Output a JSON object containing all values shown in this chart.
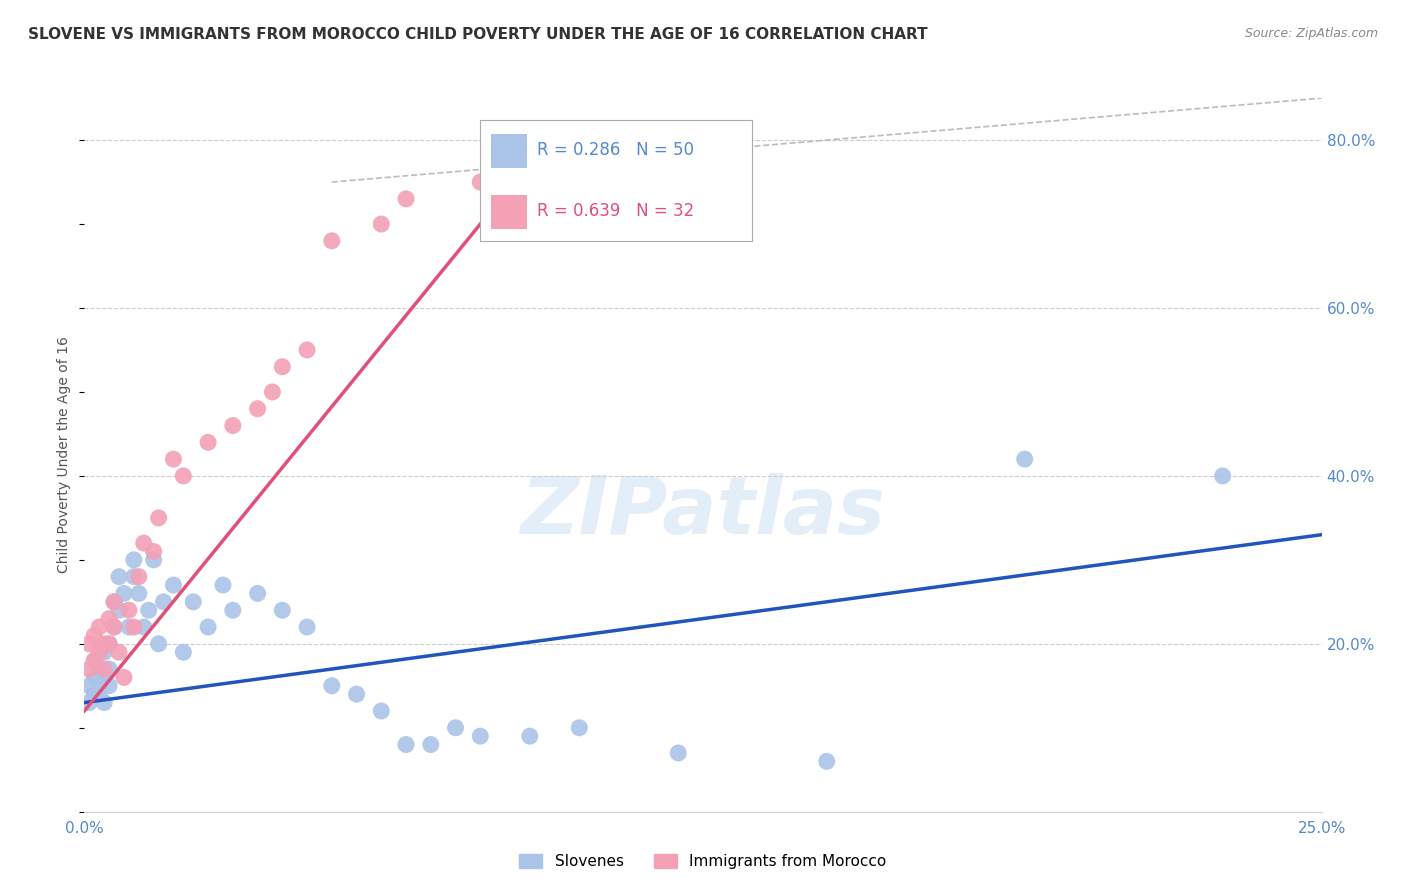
{
  "title": "SLOVENE VS IMMIGRANTS FROM MOROCCO CHILD POVERTY UNDER THE AGE OF 16 CORRELATION CHART",
  "source": "Source: ZipAtlas.com",
  "ylabel": "Child Poverty Under the Age of 16",
  "xlim": [
    0,
    0.25
  ],
  "ylim": [
    0,
    0.85
  ],
  "xticks": [
    0.0,
    0.05,
    0.1,
    0.15,
    0.2,
    0.25
  ],
  "xtick_labels": [
    "0.0%",
    "",
    "",
    "",
    "",
    "25.0%"
  ],
  "ytick_labels_right": [
    "20.0%",
    "40.0%",
    "60.0%",
    "80.0%"
  ],
  "yticks_right": [
    0.2,
    0.4,
    0.6,
    0.8
  ],
  "legend_r1": "0.286",
  "legend_n1": "50",
  "legend_r2": "0.639",
  "legend_n2": "32",
  "label1": "Slovenes",
  "label2": "Immigrants from Morocco",
  "color1": "#aac4e8",
  "color2": "#f4a0b5",
  "line_color1": "#2255bb",
  "line_color2": "#e0507a",
  "scatter1_x": [
    0.001,
    0.001,
    0.002,
    0.002,
    0.002,
    0.003,
    0.003,
    0.003,
    0.004,
    0.004,
    0.004,
    0.005,
    0.005,
    0.005,
    0.006,
    0.006,
    0.007,
    0.007,
    0.008,
    0.009,
    0.01,
    0.01,
    0.011,
    0.012,
    0.013,
    0.014,
    0.015,
    0.016,
    0.018,
    0.02,
    0.022,
    0.025,
    0.028,
    0.03,
    0.035,
    0.04,
    0.045,
    0.05,
    0.055,
    0.06,
    0.065,
    0.07,
    0.075,
    0.08,
    0.09,
    0.1,
    0.12,
    0.15,
    0.19,
    0.23
  ],
  "scatter1_y": [
    0.13,
    0.15,
    0.14,
    0.16,
    0.18,
    0.14,
    0.15,
    0.17,
    0.13,
    0.16,
    0.19,
    0.15,
    0.17,
    0.2,
    0.22,
    0.25,
    0.24,
    0.28,
    0.26,
    0.22,
    0.28,
    0.3,
    0.26,
    0.22,
    0.24,
    0.3,
    0.2,
    0.25,
    0.27,
    0.19,
    0.25,
    0.22,
    0.27,
    0.24,
    0.26,
    0.24,
    0.22,
    0.15,
    0.14,
    0.12,
    0.08,
    0.08,
    0.1,
    0.09,
    0.09,
    0.1,
    0.07,
    0.06,
    0.42,
    0.4
  ],
  "scatter2_x": [
    0.001,
    0.001,
    0.002,
    0.002,
    0.003,
    0.003,
    0.004,
    0.004,
    0.005,
    0.005,
    0.006,
    0.006,
    0.007,
    0.008,
    0.009,
    0.01,
    0.011,
    0.012,
    0.014,
    0.015,
    0.018,
    0.02,
    0.025,
    0.03,
    0.035,
    0.038,
    0.04,
    0.045,
    0.05,
    0.06,
    0.065,
    0.08
  ],
  "scatter2_y": [
    0.17,
    0.2,
    0.18,
    0.21,
    0.19,
    0.22,
    0.2,
    0.17,
    0.2,
    0.23,
    0.22,
    0.25,
    0.19,
    0.16,
    0.24,
    0.22,
    0.28,
    0.32,
    0.31,
    0.35,
    0.42,
    0.4,
    0.44,
    0.46,
    0.48,
    0.5,
    0.53,
    0.55,
    0.68,
    0.7,
    0.73,
    0.75
  ],
  "blue_line_x0": 0.0,
  "blue_line_y0": 0.13,
  "blue_line_x1": 0.25,
  "blue_line_y1": 0.33,
  "pink_line_x0": 0.0,
  "pink_line_y0": 0.12,
  "pink_line_x1": 0.08,
  "pink_line_y1": 0.7,
  "ref_line_x0": 0.05,
  "ref_line_y0": 0.75,
  "ref_line_x1": 0.25,
  "ref_line_y1": 0.85,
  "background_color": "#ffffff",
  "grid_color": "#cccccc",
  "title_fontsize": 11,
  "axis_label_fontsize": 10,
  "tick_fontsize": 11
}
